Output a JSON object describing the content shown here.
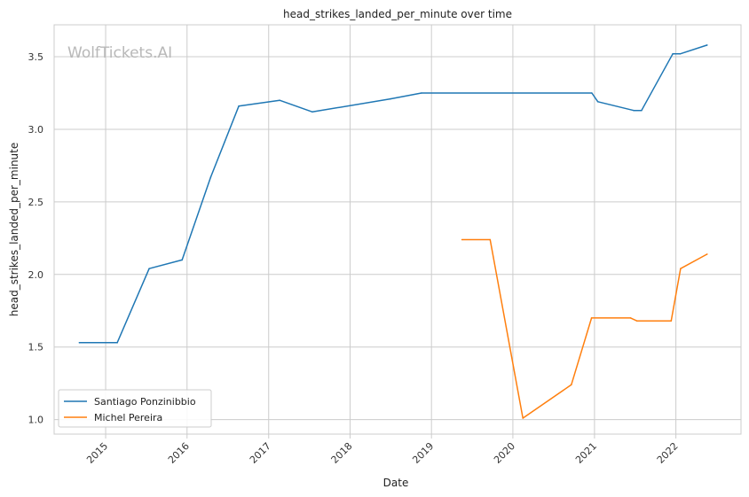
{
  "chart_data": {
    "type": "line",
    "title": "head_strikes_landed_per_minute over time",
    "xlabel": "Date",
    "ylabel": "head_strikes_landed_per_minute",
    "watermark": "WolfTickets.AI",
    "x_ticks": [
      "2015",
      "2016",
      "2017",
      "2018",
      "2019",
      "2020",
      "2021",
      "2022"
    ],
    "y_ticks": [
      "1.0",
      "1.5",
      "2.0",
      "2.5",
      "3.0",
      "3.5"
    ],
    "xlim": [
      "2014-05-15",
      "2022-10-20"
    ],
    "ylim": [
      0.9,
      3.72
    ],
    "grid": true,
    "legend_position": "bottom-left",
    "series": [
      {
        "name": "Santiago Ponzinibbio",
        "color": "#1f77b4",
        "points": [
          {
            "x": "2014-09-05",
            "y": 1.53
          },
          {
            "x": "2015-02-22",
            "y": 1.53
          },
          {
            "x": "2015-07-15",
            "y": 2.04
          },
          {
            "x": "2015-12-10",
            "y": 2.1
          },
          {
            "x": "2016-04-16",
            "y": 2.67
          },
          {
            "x": "2016-08-20",
            "y": 3.16
          },
          {
            "x": "2017-02-19",
            "y": 3.2
          },
          {
            "x": "2017-07-16",
            "y": 3.12
          },
          {
            "x": "2018-07-01",
            "y": 3.21
          },
          {
            "x": "2018-11-17",
            "y": 3.25
          },
          {
            "x": "2020-12-20",
            "y": 3.25
          },
          {
            "x": "2021-01-16",
            "y": 3.19
          },
          {
            "x": "2021-06-26",
            "y": 3.13
          },
          {
            "x": "2021-07-31",
            "y": 3.13
          },
          {
            "x": "2021-12-18",
            "y": 3.52
          },
          {
            "x": "2022-01-20",
            "y": 3.52
          },
          {
            "x": "2022-05-21",
            "y": 3.58
          }
        ]
      },
      {
        "name": "Michel Pereira",
        "color": "#ff7f0e",
        "points": [
          {
            "x": "2019-05-18",
            "y": 2.24
          },
          {
            "x": "2019-09-21",
            "y": 2.24
          },
          {
            "x": "2020-02-15",
            "y": 1.01
          },
          {
            "x": "2020-09-19",
            "y": 1.24
          },
          {
            "x": "2020-12-19",
            "y": 1.7
          },
          {
            "x": "2021-06-12",
            "y": 1.7
          },
          {
            "x": "2021-07-10",
            "y": 1.68
          },
          {
            "x": "2021-12-11",
            "y": 1.68
          },
          {
            "x": "2022-01-22",
            "y": 2.04
          },
          {
            "x": "2022-05-21",
            "y": 2.14
          }
        ]
      }
    ]
  }
}
